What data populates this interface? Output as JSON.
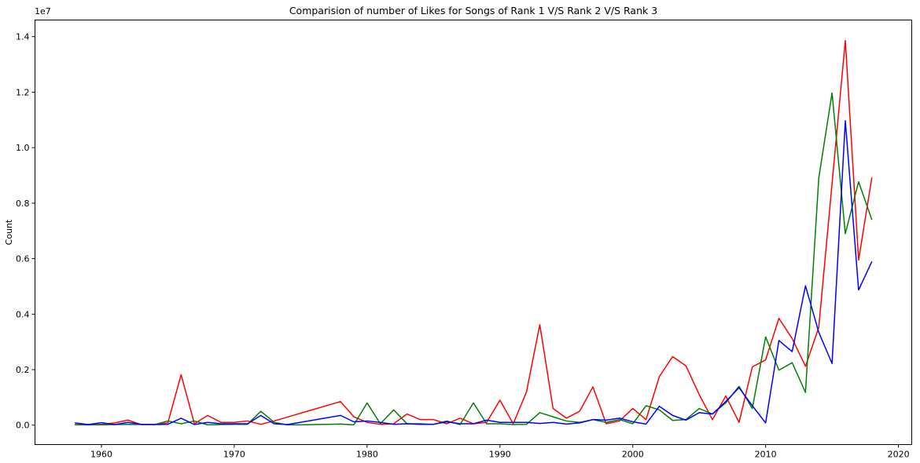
{
  "chart_data": {
    "type": "line",
    "title": "Comparision of number of Likes for Songs of Rank 1 V/S Rank 2 V/S Rank 3",
    "xlabel": "",
    "ylabel": "Count",
    "scale_offset_label": "1e7",
    "xlim": [
      1955,
      2021
    ],
    "ylim": [
      -0.07,
      1.46
    ],
    "x_ticks": [
      1960,
      1970,
      1980,
      1990,
      2000,
      2010,
      2020
    ],
    "y_ticks": [
      0.0,
      0.2,
      0.4,
      0.6,
      0.8,
      1.0,
      1.2,
      1.4
    ],
    "y_tick_labels": [
      "0.0",
      "0.2",
      "0.4",
      "0.6",
      "0.8",
      "1.0",
      "1.2",
      "1.4"
    ],
    "grid": false,
    "legend": "none",
    "series": [
      {
        "color": "#ff0000",
        "x": [
          1958,
          1959,
          1960,
          1961,
          1962,
          1963,
          1964,
          1965,
          1966,
          1967,
          1968,
          1969,
          1970,
          1971,
          1972,
          1973,
          1978,
          1979,
          1980,
          1981,
          1982,
          1983,
          1984,
          1985,
          1986,
          1987,
          1988,
          1989,
          1990,
          1991,
          1992,
          1993,
          1994,
          1995,
          1996,
          1997,
          1998,
          1999,
          2000,
          2001,
          2002,
          2003,
          2004,
          2005,
          2006,
          2007,
          2008,
          2009,
          2010,
          2011,
          2012,
          2013,
          2014,
          2015,
          2016,
          2017,
          2018
        ],
        "y": [
          0.002,
          0.001,
          0.003,
          0.008,
          0.018,
          0.002,
          0.003,
          0.008,
          0.182,
          0.005,
          0.035,
          0.01,
          0.01,
          0.015,
          0.003,
          0.015,
          0.085,
          0.03,
          0.01,
          0.003,
          0.005,
          0.04,
          0.02,
          0.02,
          0.005,
          0.025,
          0.005,
          0.01,
          0.09,
          0.005,
          0.12,
          0.362,
          0.06,
          0.025,
          0.05,
          0.138,
          0.005,
          0.015,
          0.06,
          0.02,
          0.175,
          0.247,
          0.214,
          0.11,
          0.02,
          0.105,
          0.01,
          0.21,
          0.235,
          0.385,
          0.312,
          0.212,
          0.352,
          0.87,
          1.386,
          0.595,
          0.893
        ]
      },
      {
        "color": "#008000",
        "x": [
          1958,
          1959,
          1960,
          1961,
          1962,
          1963,
          1964,
          1965,
          1966,
          1967,
          1968,
          1969,
          1970,
          1971,
          1972,
          1973,
          1974,
          1975,
          1976,
          1977,
          1978,
          1979,
          1980,
          1981,
          1982,
          1983,
          1984,
          1985,
          1986,
          1987,
          1988,
          1989,
          1990,
          1991,
          1992,
          1993,
          1994,
          1995,
          1996,
          1997,
          1998,
          1999,
          2000,
          2001,
          2002,
          2003,
          2004,
          2005,
          2006,
          2007,
          2008,
          2009,
          2010,
          2011,
          2012,
          2013,
          2014,
          2015,
          2016,
          2017,
          2018
        ],
        "y": [
          0.001,
          0.001,
          0.001,
          0.002,
          0.003,
          0.002,
          0.002,
          0.015,
          0.005,
          0.015,
          0.001,
          0.002,
          0.003,
          0.003,
          0.05,
          0.01,
          0.001,
          0.001,
          0.002,
          0.003,
          0.004,
          0.001,
          0.08,
          0.005,
          0.055,
          0.005,
          0.005,
          0.003,
          0.015,
          0.002,
          0.08,
          0.005,
          0.005,
          0.002,
          0.003,
          0.045,
          0.03,
          0.015,
          0.01,
          0.02,
          0.01,
          0.02,
          0.005,
          0.07,
          0.055,
          0.017,
          0.02,
          0.06,
          0.04,
          0.08,
          0.14,
          0.06,
          0.318,
          0.198,
          0.225,
          0.118,
          0.89,
          1.197,
          0.69,
          0.877,
          0.74
        ]
      },
      {
        "color": "#0000ff",
        "x": [
          1958,
          1959,
          1960,
          1961,
          1962,
          1963,
          1964,
          1965,
          1966,
          1967,
          1968,
          1969,
          1970,
          1971,
          1972,
          1973,
          1974,
          1978,
          1979,
          1980,
          1981,
          1982,
          1983,
          1984,
          1985,
          1986,
          1987,
          1988,
          1989,
          1990,
          1991,
          1992,
          1993,
          1994,
          1995,
          1996,
          1997,
          1998,
          1999,
          2000,
          2001,
          2002,
          2003,
          2004,
          2005,
          2006,
          2007,
          2008,
          2009,
          2010,
          2011,
          2012,
          2013,
          2014,
          2015,
          2016,
          2017,
          2018
        ],
        "y": [
          0.008,
          0.002,
          0.009,
          0.002,
          0.01,
          0.003,
          0.002,
          0.003,
          0.025,
          0.002,
          0.01,
          0.005,
          0.005,
          0.005,
          0.035,
          0.005,
          0.002,
          0.035,
          0.012,
          0.015,
          0.01,
          0.003,
          0.005,
          0.003,
          0.003,
          0.012,
          0.005,
          0.005,
          0.018,
          0.01,
          0.01,
          0.01,
          0.006,
          0.01,
          0.004,
          0.008,
          0.02,
          0.018,
          0.025,
          0.012,
          0.004,
          0.068,
          0.035,
          0.018,
          0.045,
          0.04,
          0.085,
          0.135,
          0.07,
          0.008,
          0.305,
          0.265,
          0.502,
          0.335,
          0.222,
          1.097,
          0.487,
          0.59
        ]
      }
    ]
  }
}
